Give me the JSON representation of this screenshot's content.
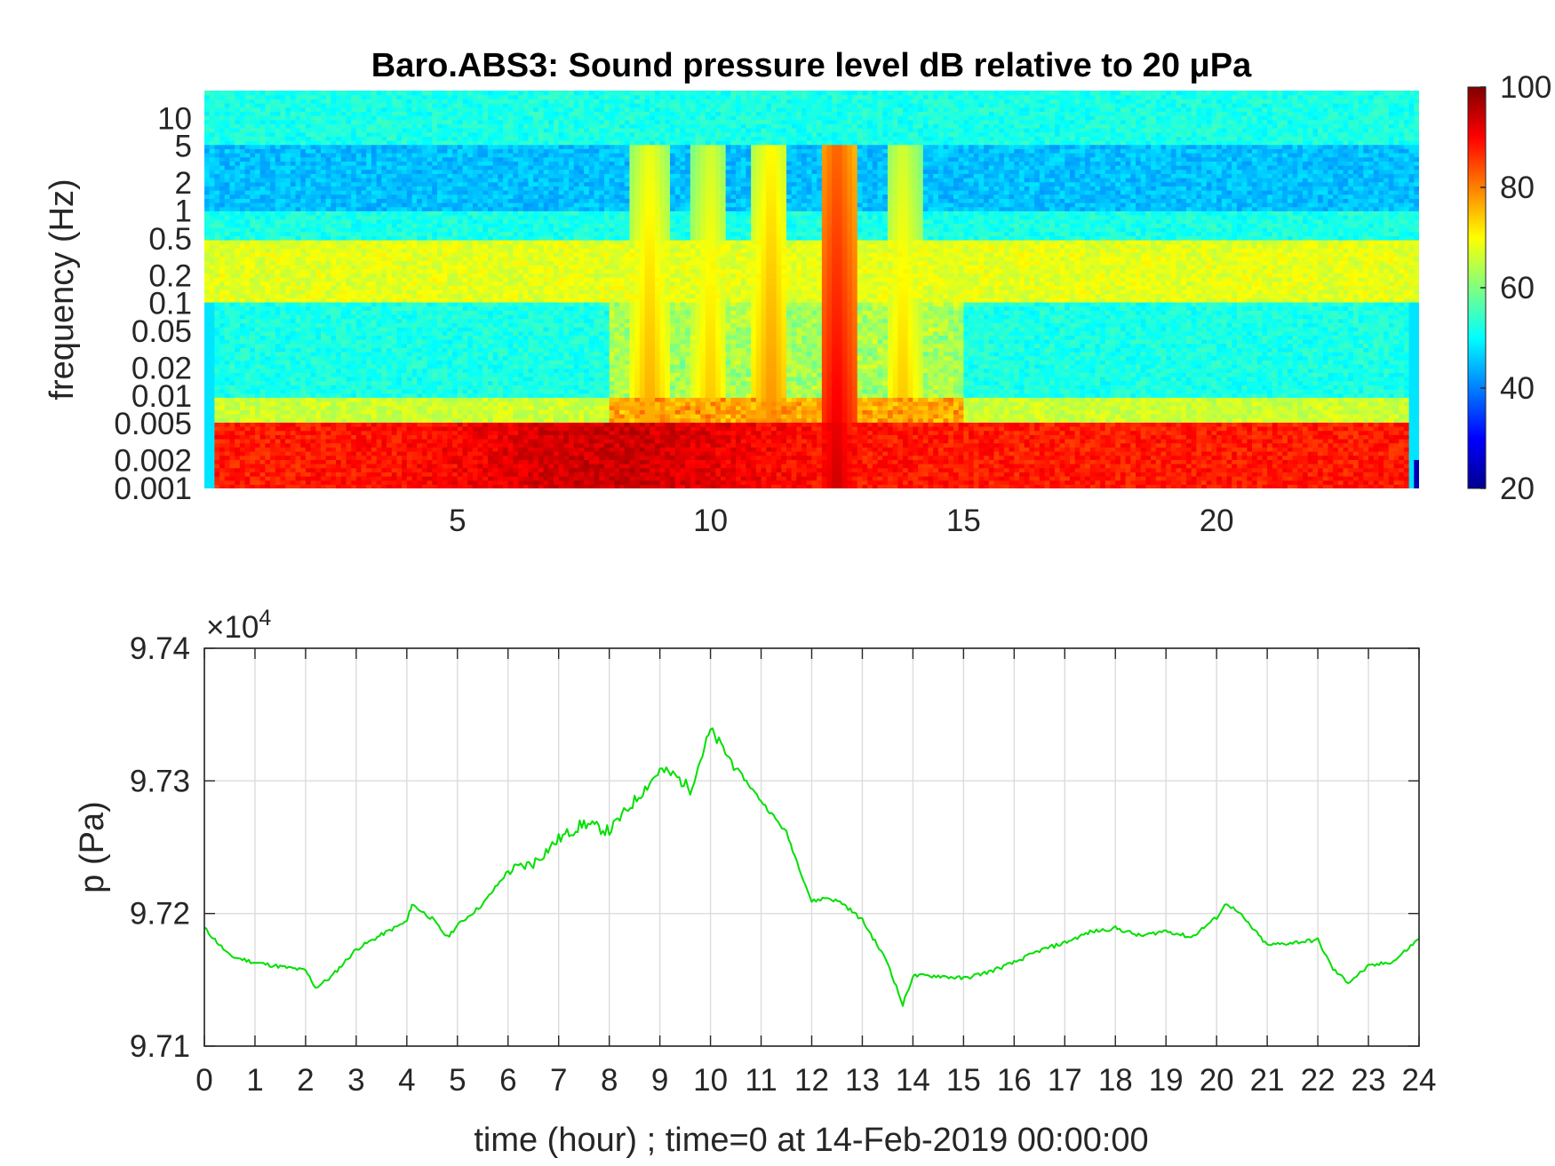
{
  "chart_data": [
    {
      "type": "heatmap",
      "title": "Baro.ABS3: Sound pressure level dB relative to 20 μPa",
      "ylabel": "frequency (Hz)",
      "xlabel": "",
      "x_ticks": [
        5,
        10,
        15,
        20
      ],
      "xlim": [
        0,
        24
      ],
      "y_scale": "log",
      "ylim": [
        0.001,
        20
      ],
      "y_ticks": [
        "10",
        "5",
        "2",
        "1",
        "0.5",
        "0.2",
        "0.1",
        "0.05",
        "0.02",
        "0.01",
        "0.005",
        "0.002",
        "0.001"
      ],
      "colorbar": {
        "colormap": "jet",
        "range": [
          20,
          100
        ],
        "ticks": [
          "100",
          "80",
          "60",
          "40",
          "20"
        ]
      },
      "bands": [
        {
          "f_range": [
            5,
            20
          ],
          "level_db": 52
        },
        {
          "f_range": [
            1,
            5
          ],
          "level_db": 45
        },
        {
          "f_range": [
            0.5,
            1
          ],
          "level_db": 52
        },
        {
          "f_range": [
            0.1,
            0.5
          ],
          "level_db": 68
        },
        {
          "f_range": [
            0.01,
            0.1
          ],
          "level_db": 52
        },
        {
          "f_range": [
            0.005,
            0.01
          ],
          "level_db": 66
        },
        {
          "f_range": [
            0.001,
            0.005
          ],
          "level_db": 88
        }
      ],
      "events": [
        {
          "hour": 8.8,
          "peak_db": 74
        },
        {
          "hour": 10.0,
          "peak_db": 72
        },
        {
          "hour": 11.2,
          "peak_db": 76
        },
        {
          "hour": 12.5,
          "peak_db": 88
        },
        {
          "hour": 13.8,
          "peak_db": 72
        }
      ]
    },
    {
      "type": "line",
      "xlabel": "time (hour) ; time=0 at 14-Feb-2019 00:00:00",
      "ylabel": "p (Pa)",
      "exponent_label": "×10",
      "exponent_power": "4",
      "xlim": [
        0,
        24
      ],
      "ylim": [
        9.71,
        9.74
      ],
      "y_multiplier": 10000,
      "grid": true,
      "x_ticks": [
        "0",
        "1",
        "2",
        "3",
        "4",
        "5",
        "6",
        "7",
        "8",
        "9",
        "10",
        "11",
        "12",
        "13",
        "14",
        "15",
        "16",
        "17",
        "18",
        "19",
        "20",
        "21",
        "22",
        "23",
        "24"
      ],
      "y_ticks": [
        "9.74",
        "9.73",
        "9.72",
        "9.71"
      ],
      "series": [
        {
          "color": "#00e000",
          "x": [
            0,
            0.5,
            1,
            1.5,
            2,
            2.2,
            2.5,
            3,
            3.5,
            4,
            4.1,
            4.5,
            4.8,
            5,
            5.5,
            6,
            6.5,
            7,
            7.5,
            8,
            8.5,
            9,
            9.3,
            9.6,
            10,
            10.5,
            11,
            11.5,
            12,
            12.3,
            12.6,
            13,
            13.5,
            13.8,
            14,
            14.5,
            15,
            15.5,
            16,
            16.5,
            17,
            17.5,
            18,
            18.5,
            19,
            19.5,
            20,
            20.2,
            20.5,
            21,
            21.5,
            22,
            22.3,
            22.6,
            23,
            23.5,
            24
          ],
          "y": [
            9.7189,
            9.7168,
            9.7163,
            9.716,
            9.7157,
            9.7144,
            9.7152,
            9.7173,
            9.7184,
            9.7194,
            9.7207,
            9.7196,
            9.7182,
            9.7191,
            9.7207,
            9.7232,
            9.7238,
            9.7256,
            9.7268,
            9.7262,
            9.7285,
            9.7308,
            9.7304,
            9.7294,
            9.7338,
            9.731,
            9.7285,
            9.7261,
            9.7209,
            9.7212,
            9.7208,
            9.7195,
            9.7163,
            9.7131,
            9.7153,
            9.7153,
            9.7151,
            9.7156,
            9.7163,
            9.7172,
            9.7178,
            9.7186,
            9.7189,
            9.7183,
            9.7187,
            9.7182,
            9.7197,
            9.7208,
            9.7198,
            9.7176,
            9.7178,
            9.718,
            9.7158,
            9.7148,
            9.716,
            9.7164,
            9.7181
          ]
        }
      ]
    }
  ]
}
